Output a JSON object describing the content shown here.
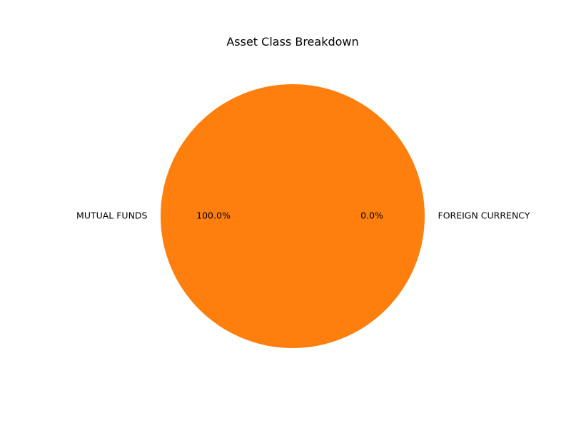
{
  "chart_data": {
    "type": "pie",
    "title": "Asset Class Breakdown",
    "slices": [
      {
        "label": "FOREIGN CURRENCY",
        "value": 0.0,
        "percent_label": "0.0%",
        "color": "#1f77b4"
      },
      {
        "label": "MUTUAL FUNDS",
        "value": 100.0,
        "percent_label": "100.0%",
        "color": "#ff7f0e"
      }
    ],
    "start_angle_deg": 0,
    "direction": "counterclockwise",
    "legend": "none"
  }
}
